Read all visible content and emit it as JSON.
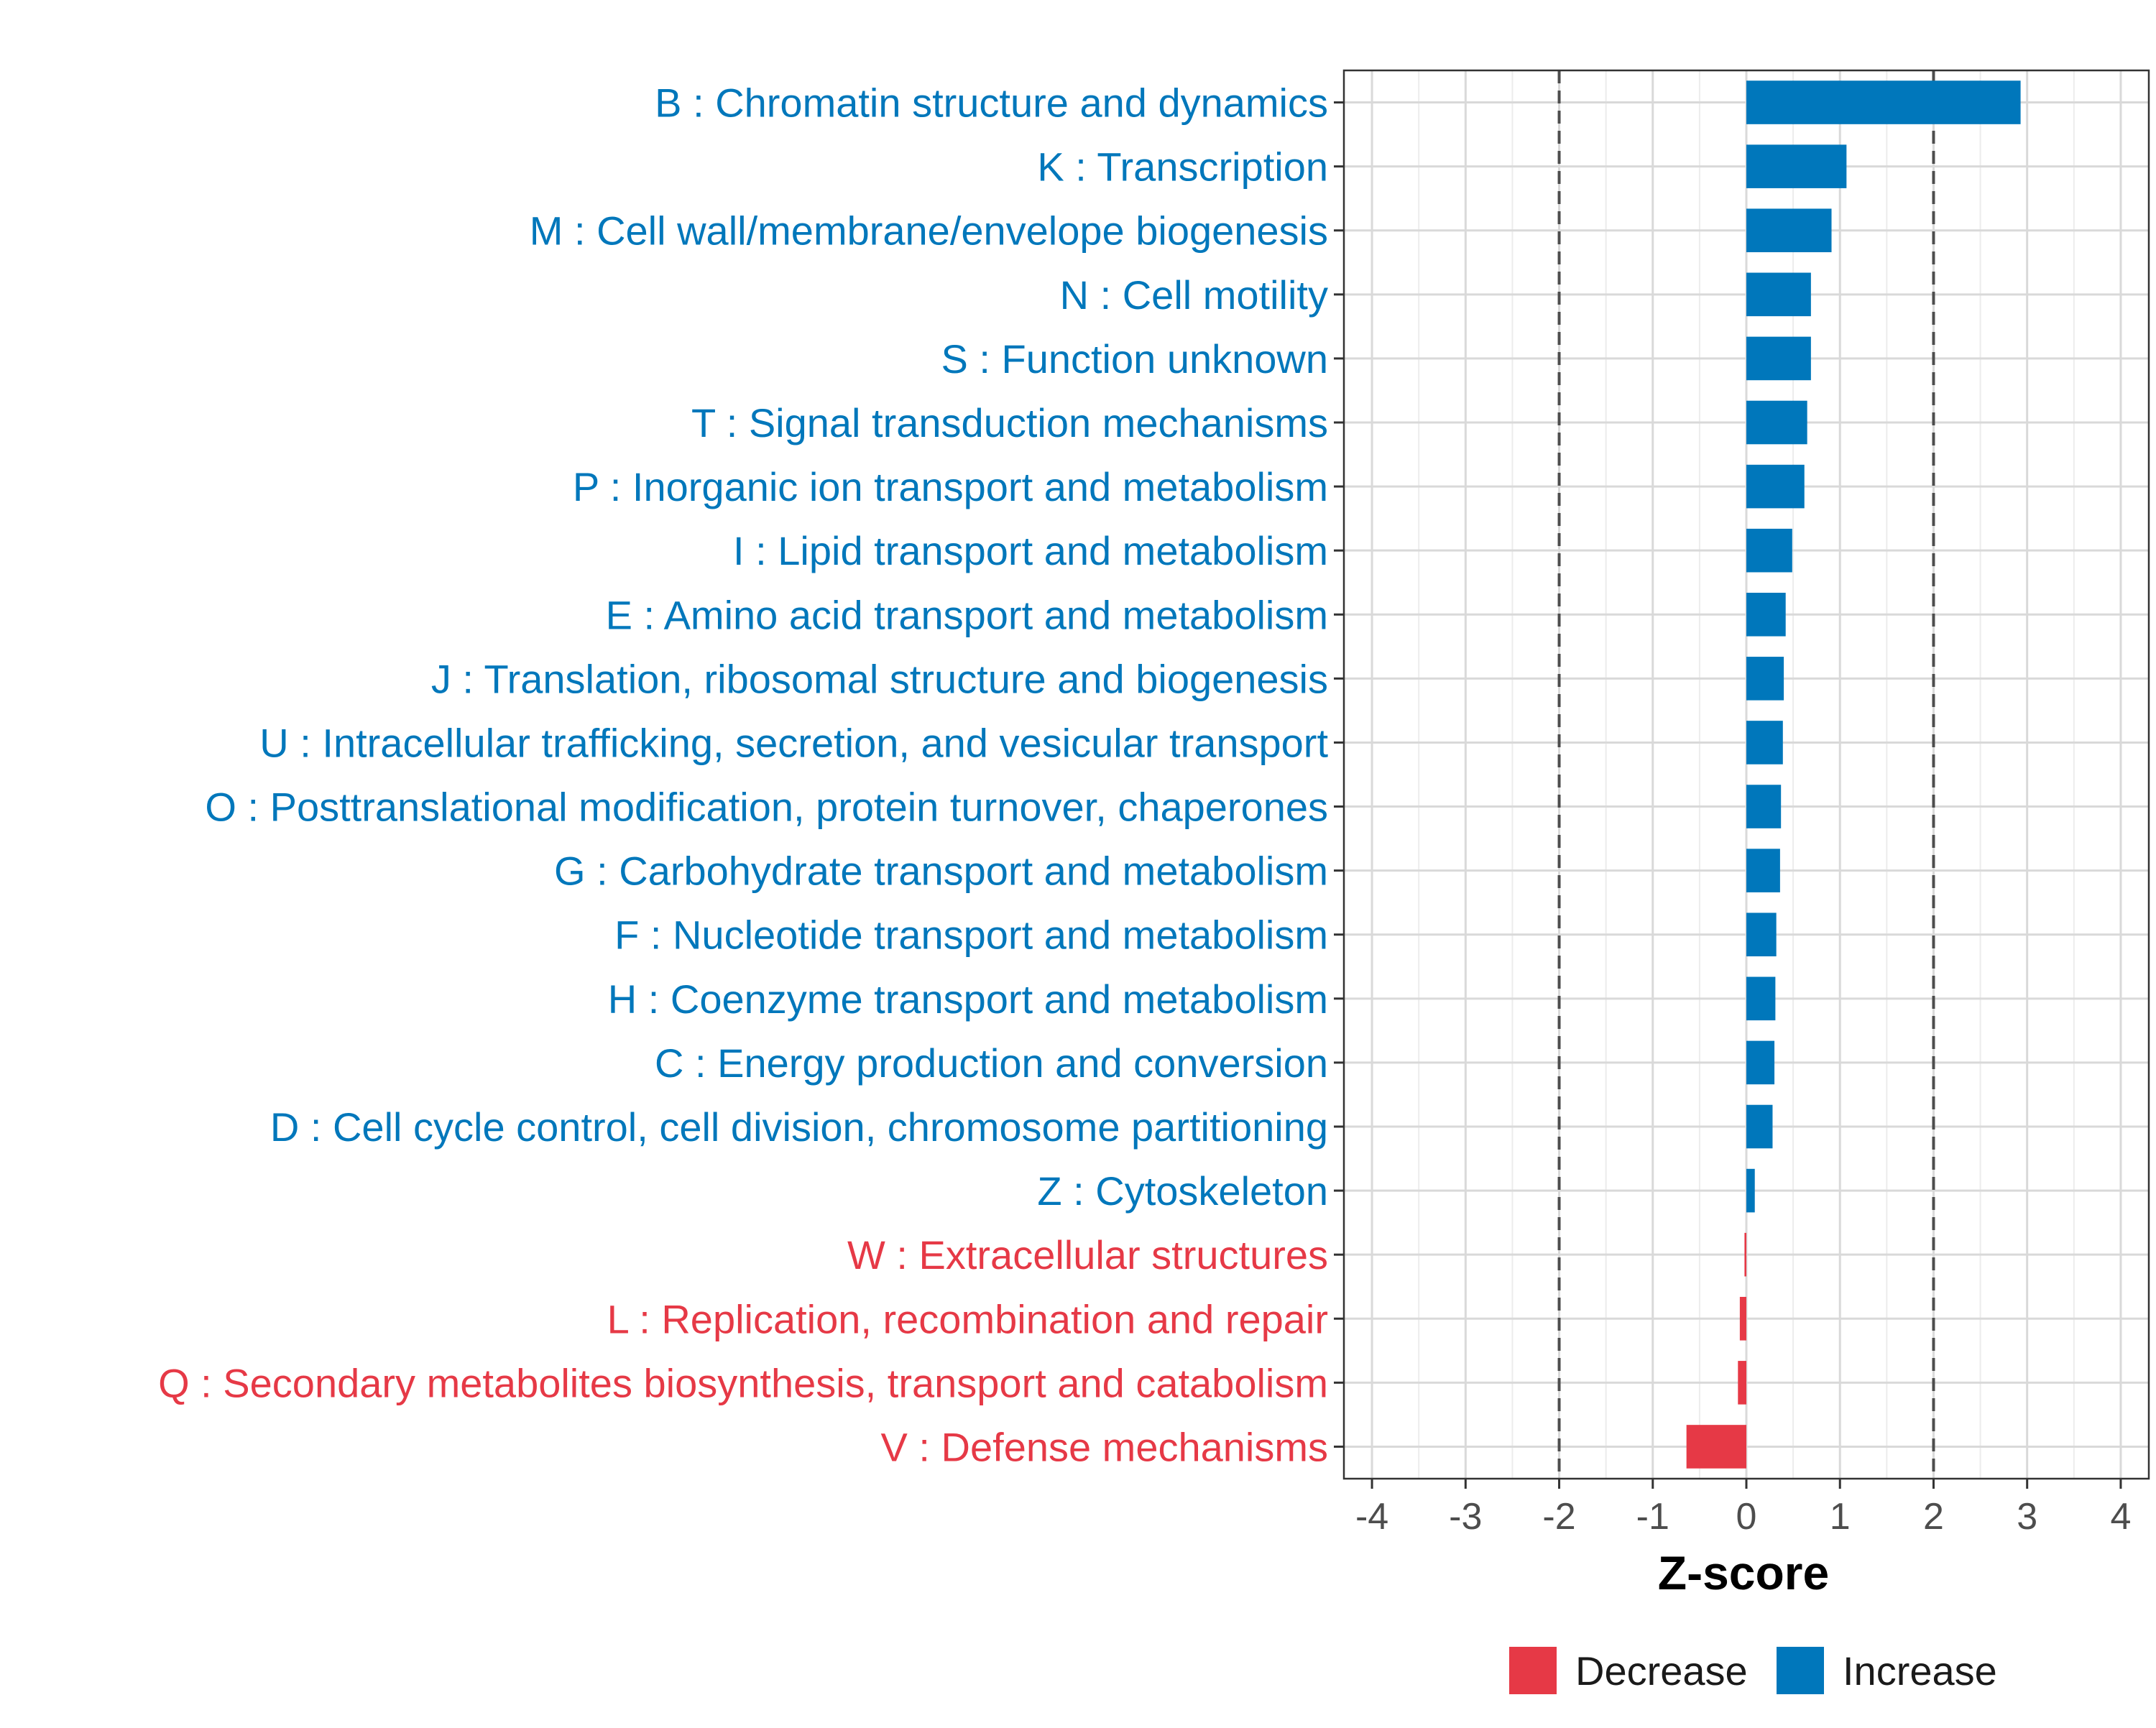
{
  "chart_data": {
    "type": "bar",
    "orientation": "horizontal",
    "xlabel": "Z-score",
    "xlim": [
      -4.3,
      4.3
    ],
    "xticks": [
      -4,
      -3,
      -2,
      -1,
      0,
      1,
      2,
      3,
      4
    ],
    "reference_lines": [
      -2,
      2
    ],
    "grid": true,
    "legend_position": "bottom",
    "colors": {
      "Decrease": "#e63946",
      "Increase": "#0077bb"
    },
    "legend": [
      {
        "label": "Decrease",
        "color": "#e63946"
      },
      {
        "label": "Increase",
        "color": "#0077bb"
      }
    ],
    "categories": [
      "B : Chromatin structure and dynamics",
      "K : Transcription",
      "M : Cell wall/membrane/envelope biogenesis",
      "N : Cell motility",
      "S : Function unknown",
      "T : Signal transduction mechanisms",
      "P : Inorganic ion transport and metabolism",
      "I : Lipid transport and metabolism",
      "E : Amino acid transport and metabolism",
      "J : Translation, ribosomal structure and biogenesis",
      "U : Intracellular trafficking, secretion, and vesicular transport",
      "O : Posttranslational modification, protein turnover, chaperones",
      "G : Carbohydrate transport and metabolism",
      "F : Nucleotide transport and metabolism",
      "H : Coenzyme transport and metabolism",
      "C : Energy production and conversion",
      "D : Cell cycle control, cell division, chromosome partitioning",
      "Z : Cytoskeleton",
      "W : Extracellular structures",
      "L : Replication, recombination and repair",
      "Q : Secondary metabolites biosynthesis, transport and catabolism",
      "V : Defense mechanisms"
    ],
    "values": [
      2.93,
      1.07,
      0.91,
      0.69,
      0.69,
      0.65,
      0.62,
      0.49,
      0.42,
      0.4,
      0.39,
      0.37,
      0.36,
      0.32,
      0.31,
      0.3,
      0.28,
      0.09,
      -0.02,
      -0.07,
      -0.09,
      -0.64
    ],
    "groups": [
      "Increase",
      "Increase",
      "Increase",
      "Increase",
      "Increase",
      "Increase",
      "Increase",
      "Increase",
      "Increase",
      "Increase",
      "Increase",
      "Increase",
      "Increase",
      "Increase",
      "Increase",
      "Increase",
      "Increase",
      "Increase",
      "Decrease",
      "Decrease",
      "Decrease",
      "Decrease"
    ]
  }
}
